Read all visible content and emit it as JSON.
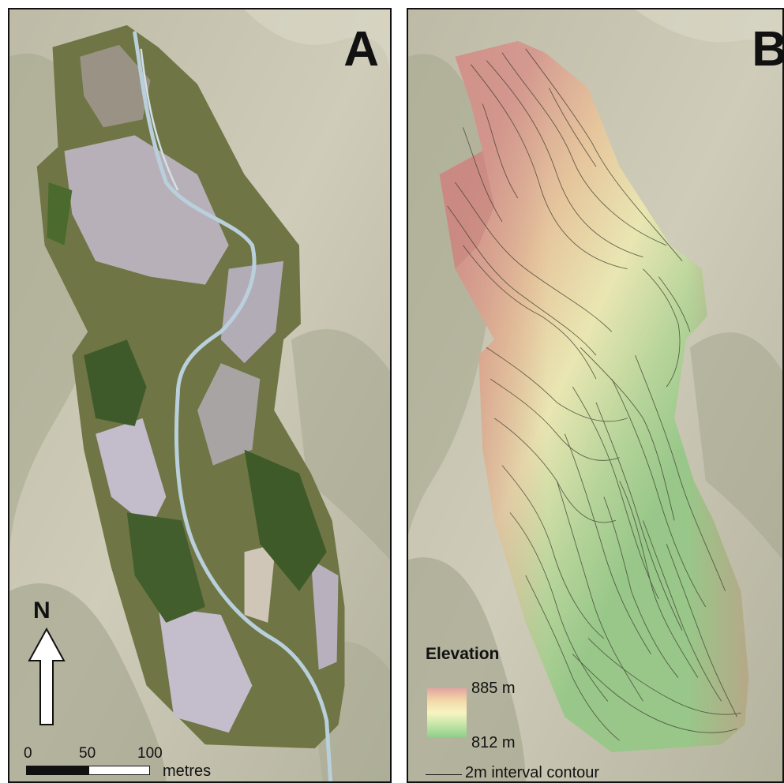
{
  "panels": [
    {
      "letter": "A"
    },
    {
      "letter": "B"
    }
  ],
  "north_arrow": {
    "label": "N"
  },
  "scale_bar": {
    "ticks": [
      "0",
      "50",
      "100"
    ],
    "unit": "metres"
  },
  "legend": {
    "title": "Elevation",
    "max_label": "885 m",
    "min_label": "812 m",
    "contour_label": "2m interval contour",
    "ramp_colors": [
      "#e4a4a0",
      "#f2d8a8",
      "#f7f4c2",
      "#c4e4a6",
      "#8fcf8d"
    ]
  },
  "colors": {
    "background_terrain": "#c9c6b3",
    "vegetation": "#5e6a38",
    "stream": "#b8cfdb",
    "contour": "#3a3a2a"
  }
}
